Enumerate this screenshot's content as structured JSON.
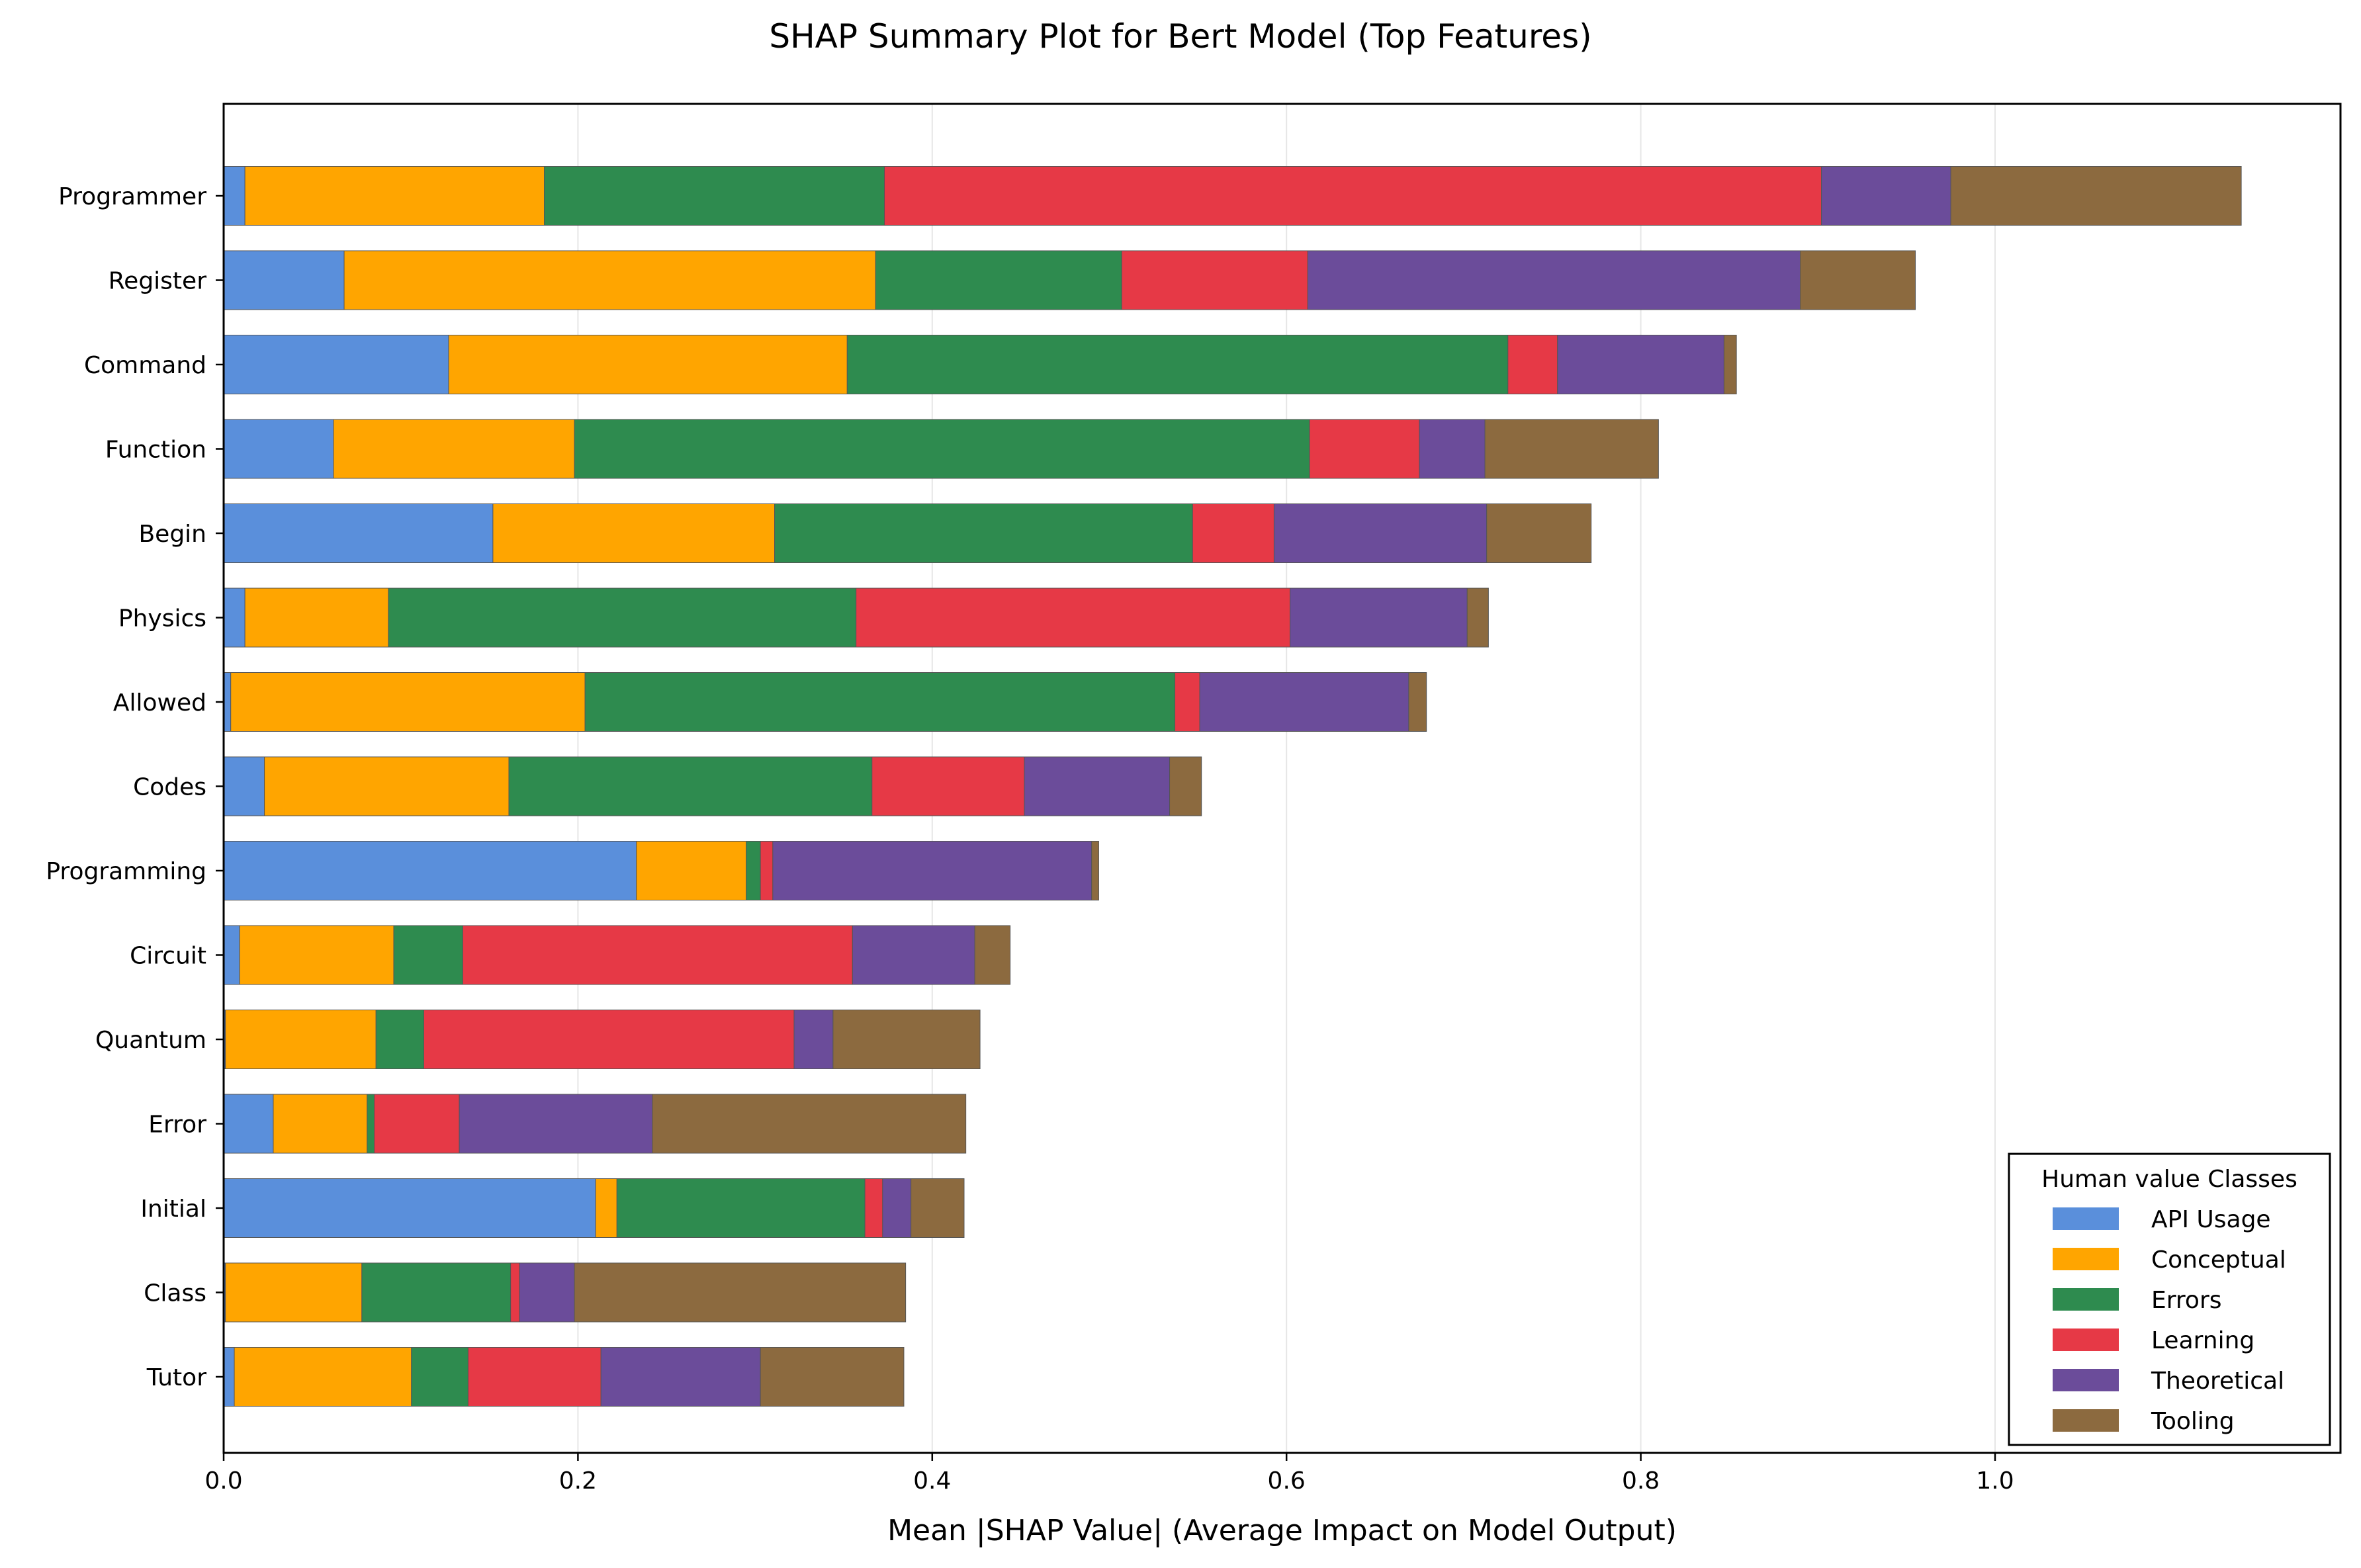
{
  "chart_data": {
    "type": "bar",
    "orientation": "horizontal",
    "stacked": true,
    "title": "SHAP Summary Plot for Bert Model (Top Features)",
    "xlabel": "Mean |SHAP Value| (Average Impact on Model Output)",
    "ylabel": "",
    "xlim": [
      0,
      1.195
    ],
    "xticks": [
      0.0,
      0.2,
      0.4,
      0.6,
      0.8,
      1.0
    ],
    "xtick_labels": [
      "0.0",
      "0.2",
      "0.4",
      "0.6",
      "0.8",
      "1.0"
    ],
    "grid": "vertical",
    "categories": [
      "Programmer",
      "Register",
      "Command",
      "Function",
      "Begin",
      "Physics",
      "Allowed",
      "Codes",
      "Programming",
      "Circuit",
      "Quantum",
      "Error",
      "Initial",
      "Class",
      "Tutor"
    ],
    "legend": {
      "title": "Human value Classes",
      "position": "lower-right"
    },
    "series": [
      {
        "name": "API Usage",
        "color": "#5a8fdb",
        "values": [
          0.012,
          0.068,
          0.127,
          0.062,
          0.152,
          0.012,
          0.004,
          0.023,
          0.233,
          0.009,
          0.001,
          0.028,
          0.21,
          0.001,
          0.006
        ]
      },
      {
        "name": "Conceptual",
        "color": "#ffa500",
        "values": [
          0.169,
          0.3,
          0.225,
          0.136,
          0.159,
          0.081,
          0.2,
          0.138,
          0.062,
          0.087,
          0.085,
          0.053,
          0.012,
          0.077,
          0.1
        ]
      },
      {
        "name": "Errors",
        "color": "#2e8b4f",
        "values": [
          0.192,
          0.139,
          0.373,
          0.415,
          0.236,
          0.264,
          0.333,
          0.205,
          0.008,
          0.039,
          0.027,
          0.004,
          0.14,
          0.084,
          0.032
        ]
      },
      {
        "name": "Learning",
        "color": "#e63946",
        "values": [
          0.529,
          0.105,
          0.028,
          0.062,
          0.046,
          0.245,
          0.014,
          0.086,
          0.007,
          0.22,
          0.209,
          0.048,
          0.01,
          0.005,
          0.075
        ]
      },
      {
        "name": "Theoretical",
        "color": "#6b4c9a",
        "values": [
          0.073,
          0.278,
          0.094,
          0.037,
          0.12,
          0.1,
          0.118,
          0.082,
          0.18,
          0.069,
          0.022,
          0.109,
          0.016,
          0.031,
          0.09
        ]
      },
      {
        "name": "Tooling",
        "color": "#8c6a3f",
        "values": [
          0.164,
          0.065,
          0.007,
          0.098,
          0.059,
          0.012,
          0.01,
          0.018,
          0.004,
          0.02,
          0.083,
          0.177,
          0.03,
          0.187,
          0.081
        ]
      }
    ]
  }
}
